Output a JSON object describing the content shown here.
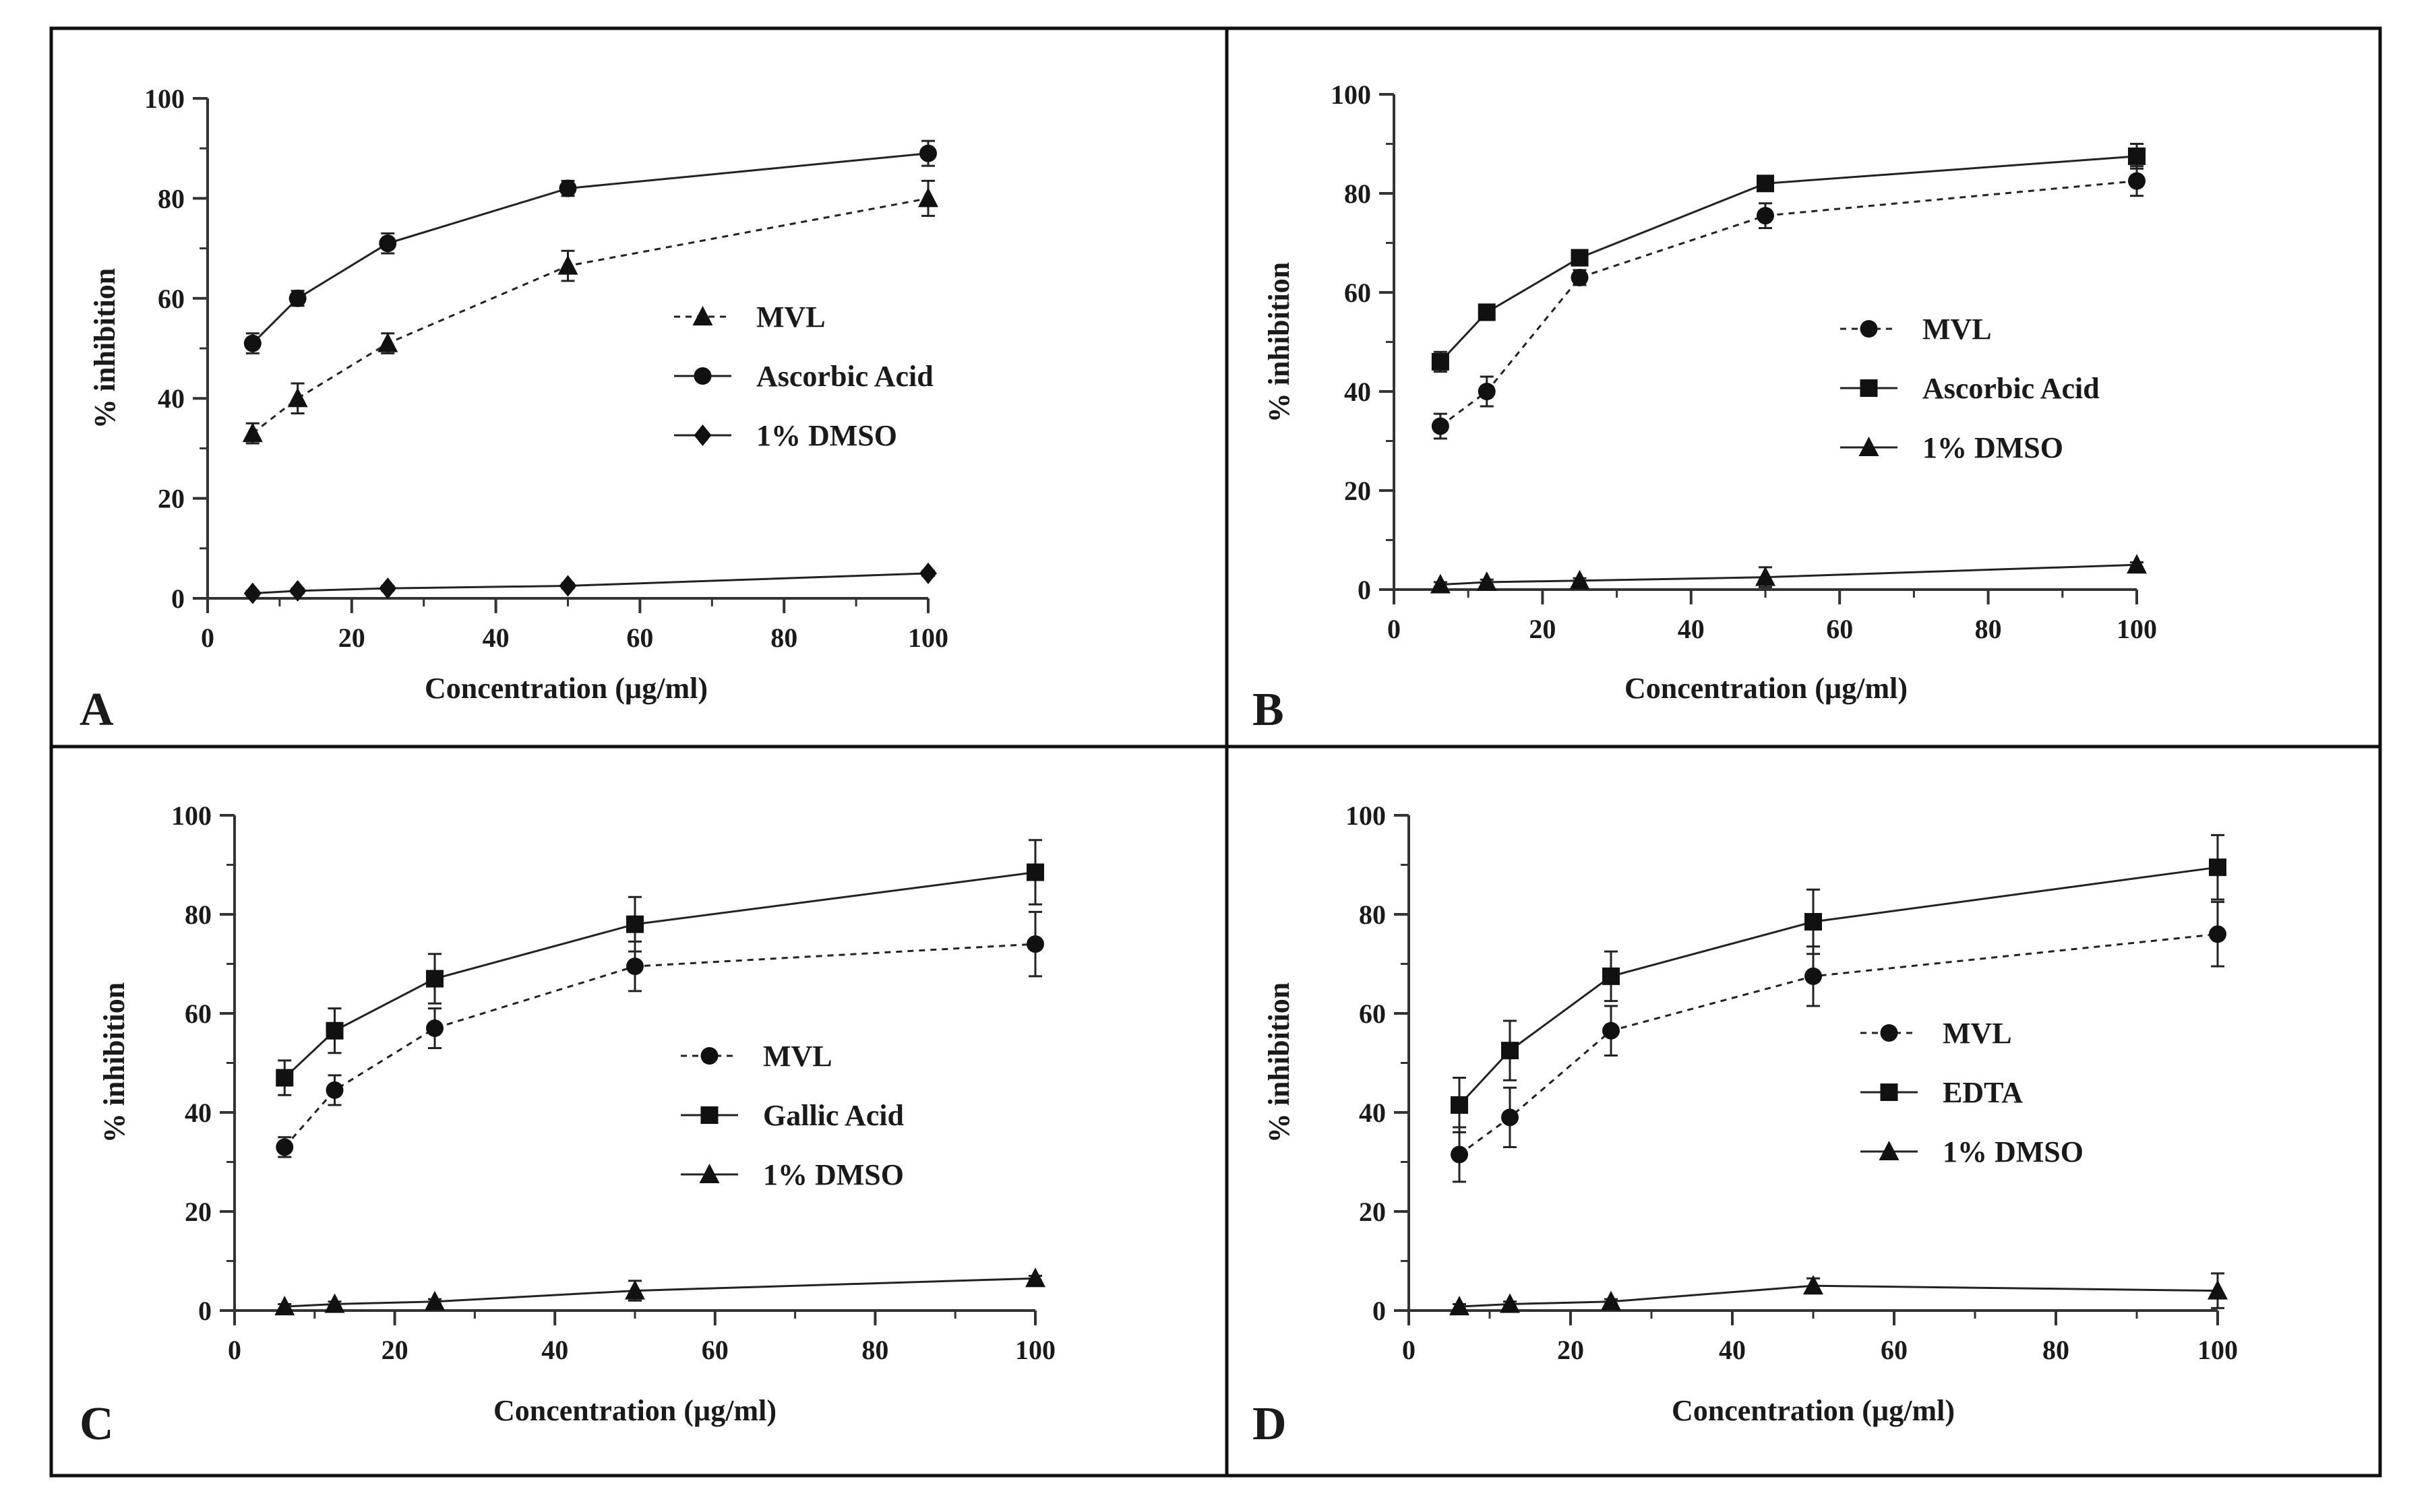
{
  "chart_data": [
    {
      "type": "line",
      "panel": "A",
      "xlabel": "Concentration (µg/ml)",
      "ylabel": "% inhibition",
      "xlim": [
        0,
        100
      ],
      "ylim": [
        0,
        100
      ],
      "xticks": [
        "0",
        "20",
        "40",
        "60",
        "80",
        "100"
      ],
      "yticks": [
        "0",
        "20",
        "40",
        "60",
        "80",
        "100"
      ],
      "x": [
        6.25,
        12.5,
        25,
        50,
        100
      ],
      "series": [
        {
          "name": "MVL",
          "marker": "triangle",
          "dash": "dotted",
          "values": [
            33,
            40,
            51,
            66.5,
            80
          ],
          "errors": [
            2,
            3,
            2,
            3,
            3.5
          ]
        },
        {
          "name": "Ascorbic Acid",
          "marker": "circle",
          "dash": "solid",
          "values": [
            51,
            60,
            71,
            82,
            89
          ],
          "errors": [
            2,
            1.5,
            2,
            1.5,
            2.5
          ]
        },
        {
          "name": "1% DMSO",
          "marker": "diamond",
          "dash": "solid",
          "values": [
            1,
            1.5,
            2,
            2.5,
            5
          ],
          "errors": [
            0.5,
            0.5,
            0.5,
            0.5,
            0.5
          ]
        }
      ],
      "legend_position": "right"
    },
    {
      "type": "line",
      "panel": "B",
      "xlabel": "Concentration (µg/ml)",
      "ylabel": "% inhibition",
      "xlim": [
        0,
        100
      ],
      "ylim": [
        0,
        100
      ],
      "xticks": [
        "0",
        "20",
        "40",
        "60",
        "80",
        "100"
      ],
      "yticks": [
        "0",
        "20",
        "40",
        "60",
        "80",
        "100"
      ],
      "x": [
        6.25,
        12.5,
        25,
        50,
        100
      ],
      "series": [
        {
          "name": "MVL",
          "marker": "circle",
          "dash": "dotted",
          "values": [
            33,
            40,
            63,
            75.5,
            82.5
          ],
          "errors": [
            2.5,
            3,
            1.5,
            2.5,
            3
          ]
        },
        {
          "name": "Ascorbic Acid",
          "marker": "square",
          "dash": "solid",
          "values": [
            46,
            56,
            67,
            82,
            87.5
          ],
          "errors": [
            2,
            1.5,
            1.5,
            1.5,
            2.5
          ]
        },
        {
          "name": "1% DMSO",
          "marker": "triangle",
          "dash": "solid",
          "values": [
            1,
            1.5,
            1.8,
            2.5,
            5
          ],
          "errors": [
            0.5,
            0.5,
            0.5,
            2,
            0.5
          ]
        }
      ],
      "legend_position": "right"
    },
    {
      "type": "line",
      "panel": "C",
      "xlabel": "Concentration (µg/ml)",
      "ylabel": "% inhibition",
      "xlim": [
        0,
        100
      ],
      "ylim": [
        0,
        100
      ],
      "xticks": [
        "0",
        "20",
        "40",
        "60",
        "80",
        "100"
      ],
      "yticks": [
        "0",
        "20",
        "40",
        "60",
        "80",
        "100"
      ],
      "x": [
        6.25,
        12.5,
        25,
        50,
        100
      ],
      "series": [
        {
          "name": "MVL",
          "marker": "circle",
          "dash": "dotted",
          "values": [
            33,
            44.5,
            57,
            69.5,
            74
          ],
          "errors": [
            2,
            3,
            4,
            5,
            6.5
          ]
        },
        {
          "name": "Gallic Acid",
          "marker": "square",
          "dash": "solid",
          "values": [
            47,
            56.5,
            67,
            78,
            88.5
          ],
          "errors": [
            3.5,
            4.5,
            5,
            5.5,
            6.5
          ]
        },
        {
          "name": "1% DMSO",
          "marker": "triangle",
          "dash": "solid",
          "values": [
            0.8,
            1.3,
            1.8,
            4,
            6.5
          ],
          "errors": [
            0.5,
            0.5,
            0.5,
            2,
            0.5
          ]
        }
      ],
      "legend_position": "right"
    },
    {
      "type": "line",
      "panel": "D",
      "xlabel": "Concentration (µg/ml)",
      "ylabel": "% inhibition",
      "xlim": [
        0,
        100
      ],
      "ylim": [
        0,
        100
      ],
      "xticks": [
        "0",
        "20",
        "40",
        "60",
        "80",
        "100"
      ],
      "yticks": [
        "0",
        "20",
        "40",
        "60",
        "80",
        "100"
      ],
      "x": [
        6.25,
        12.5,
        25,
        50,
        100
      ],
      "series": [
        {
          "name": "MVL",
          "marker": "circle",
          "dash": "dotted",
          "values": [
            31.5,
            39,
            56.5,
            67.5,
            76
          ],
          "errors": [
            5.5,
            6,
            5,
            6,
            6.5
          ]
        },
        {
          "name": "EDTA",
          "marker": "square",
          "dash": "solid",
          "values": [
            41.5,
            52.5,
            67.5,
            78.5,
            89.5
          ],
          "errors": [
            5.5,
            6,
            5,
            6.5,
            6.5
          ]
        },
        {
          "name": "1% DMSO",
          "marker": "triangle",
          "dash": "solid",
          "values": [
            0.8,
            1.3,
            1.8,
            5,
            4
          ],
          "errors": [
            0.5,
            0.5,
            0.5,
            1.5,
            3.5
          ]
        }
      ],
      "legend_position": "right"
    }
  ]
}
